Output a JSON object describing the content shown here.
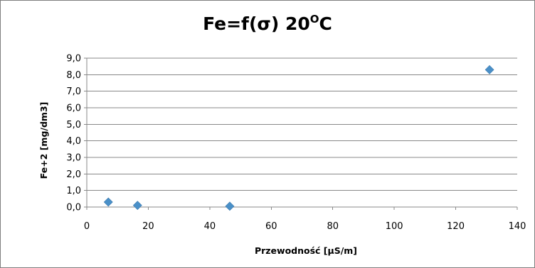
{
  "chart_data": {
    "type": "scatter",
    "title": "Fe=f(σ) 20",
    "title_superscript": "O",
    "title_suffix": "C",
    "xlabel": "Przewodność [µS/m]",
    "ylabel": "Fe+2 [mg/dm3]",
    "xlim": [
      0,
      140
    ],
    "ylim": [
      0,
      9
    ],
    "x_ticks": [
      "0",
      "20",
      "40",
      "60",
      "80",
      "100",
      "120",
      "140"
    ],
    "y_ticks": [
      "0,0",
      "1,0",
      "2,0",
      "3,0",
      "4,0",
      "5,0",
      "6,0",
      "7,0",
      "8,0",
      "9,0"
    ],
    "grid": true,
    "legend": "none",
    "marker": "diamond",
    "series": [
      {
        "color": "#4a90c8",
        "points": [
          {
            "x": 7,
            "y": 0.3
          },
          {
            "x": 16.5,
            "y": 0.1
          },
          {
            "x": 46.5,
            "y": 0.05
          },
          {
            "x": 131,
            "y": 8.3
          }
        ]
      }
    ],
    "colors": {
      "grid": "#888888",
      "axis": "#888888",
      "marker": "#4a90c8"
    }
  }
}
